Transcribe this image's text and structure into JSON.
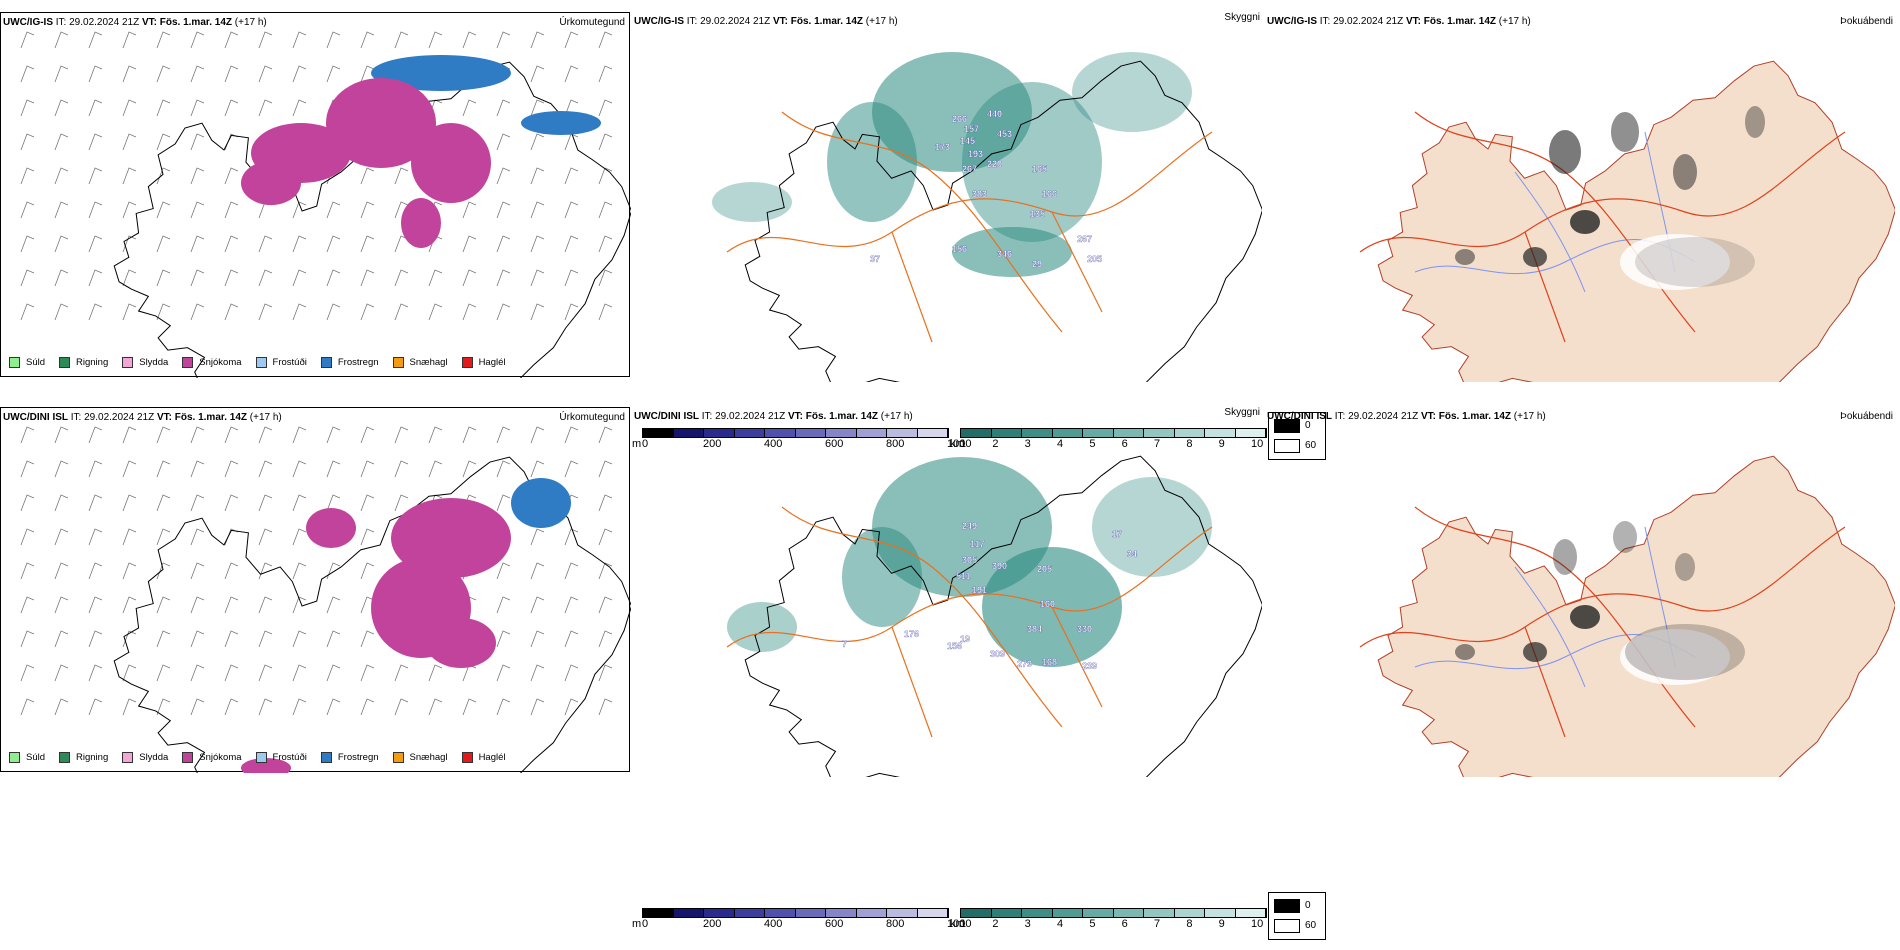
{
  "rows": [
    {
      "model": "UWC/IG-IS",
      "it": "IT: 29.02.2024 21Z",
      "vt_label": "VT:",
      "vt_value": "Fös. 1.mar. 14Z",
      "lead": "(+17 h)",
      "visibility_numbers": [
        "266",
        "440",
        "157",
        "453",
        "173",
        "145",
        "193",
        "220",
        "267",
        "165",
        "383",
        "166",
        "135",
        "37",
        "156",
        "346",
        "267",
        "205",
        "29"
      ]
    },
    {
      "model": "UWC/DINI ISL",
      "it": "IT: 29.02.2024 21Z",
      "vt_label": "VT:",
      "vt_value": "Fös. 1.mar. 14Z",
      "lead": "(+17 h)",
      "visibility_numbers": [
        "249",
        "117",
        "305",
        "390",
        "205",
        "511",
        "191",
        "160",
        "384",
        "330",
        "176",
        "156",
        "19",
        "309",
        "279",
        "168",
        "239",
        "17",
        "34",
        "7"
      ]
    }
  ],
  "panel_names": {
    "precip": "Úrkomutegund",
    "visibility": "Skyggni",
    "fog": "Þokuábendi"
  },
  "precip_legend": [
    {
      "label": "Súld",
      "color": "#90ee90"
    },
    {
      "label": "Rigning",
      "color": "#2e8b57"
    },
    {
      "label": "Slydda",
      "color": "#f4a6d7"
    },
    {
      "label": "Snjókoma",
      "color": "#c2439b"
    },
    {
      "label": "Frostúði",
      "color": "#9ec9f0"
    },
    {
      "label": "Frostregn",
      "color": "#2f7bc4"
    },
    {
      "label": "Snæhagl",
      "color": "#f39c12"
    },
    {
      "label": "Haglél",
      "color": "#e31a1c"
    }
  ],
  "elev_bar": {
    "unit": "m",
    "ticks": [
      "0",
      "200",
      "400",
      "600",
      "800",
      "1000"
    ],
    "colors": [
      "#000000",
      "#15156e",
      "#2a2a8c",
      "#3d3d9e",
      "#5050ad",
      "#6a6aba",
      "#8585c8",
      "#a0a0d4",
      "#bbbbe0",
      "#d6d6ec"
    ]
  },
  "vis_bar": {
    "unit": "km",
    "ticks": [
      "1",
      "2",
      "3",
      "4",
      "5",
      "6",
      "7",
      "8",
      "9",
      "10"
    ],
    "colors": [
      "#1f6f68",
      "#2d7f78",
      "#3d8e87",
      "#509c95",
      "#65aaa4",
      "#7bb8b2",
      "#93c6c1",
      "#abd4d0",
      "#c4e2df",
      "#ddf0ee"
    ]
  },
  "fog_legend": [
    {
      "value": "0",
      "color": "#000000"
    },
    {
      "value": "60",
      "color": "#ffffff"
    }
  ],
  "colors": {
    "snow": "#c2439b",
    "freezing_rain": "#2f7bc4",
    "visibility": "#2a8a80",
    "roads": "#e8711f",
    "fog_land": "#f3dfcc",
    "fog_roads": "#e0431c",
    "rivers": "#7f93f0"
  }
}
